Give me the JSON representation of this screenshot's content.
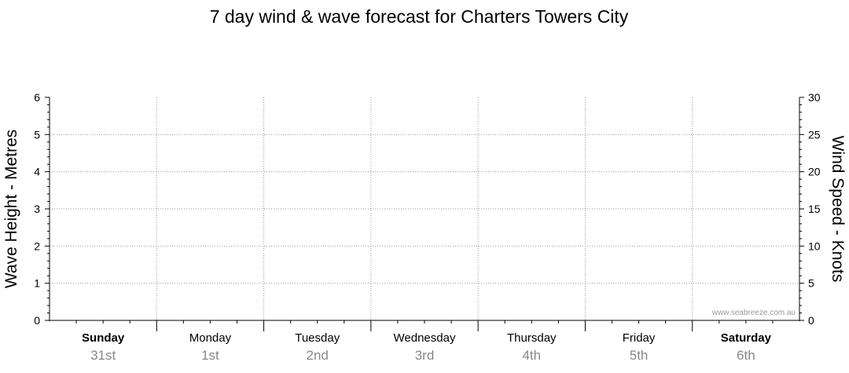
{
  "chart_data": {
    "type": "line",
    "title": "7 day wind & wave forecast for Charters Towers City",
    "y_left": {
      "label": "Wave Height - Metres",
      "range": [
        0,
        6
      ],
      "ticks": [
        "0",
        "1",
        "2",
        "3",
        "4",
        "5",
        "6"
      ]
    },
    "y_right": {
      "label": "Wind Speed - Knots",
      "range": [
        0,
        30
      ],
      "ticks": [
        "0",
        "5",
        "10",
        "15",
        "20",
        "25",
        "30"
      ]
    },
    "days": [
      {
        "name": "Sunday",
        "date": "31st",
        "bold": true
      },
      {
        "name": "Monday",
        "date": "1st",
        "bold": false
      },
      {
        "name": "Tuesday",
        "date": "2nd",
        "bold": false
      },
      {
        "name": "Wednesday",
        "date": "3rd",
        "bold": false
      },
      {
        "name": "Thursday",
        "date": "4th",
        "bold": false
      },
      {
        "name": "Friday",
        "date": "5th",
        "bold": false
      },
      {
        "name": "Saturday",
        "date": "6th",
        "bold": true
      }
    ],
    "series": [],
    "grid": true
  },
  "watermark": "www.seabreeze.com.au"
}
